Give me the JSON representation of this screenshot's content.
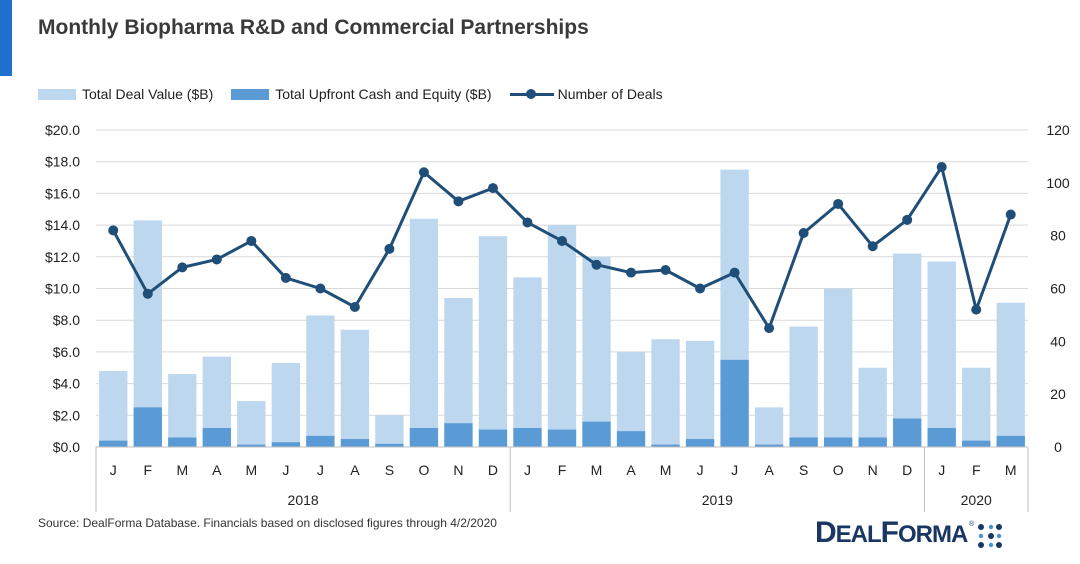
{
  "title": "Monthly Biopharma R&D and Commercial Partnerships",
  "source": "Source: DealForma Database. Financials based on disclosed figures through 4/2/2020",
  "logo": {
    "text_big1": "D",
    "text_small1": "EAL",
    "text_big2": "F",
    "text_small2": "ORMA",
    "reg": "®"
  },
  "colors": {
    "deal_value": "#bdd7ee",
    "upfront": "#5b9bd5",
    "deals_line": "#1f4e79",
    "accent": "#1f6fcf"
  },
  "chart_data": {
    "type": "bar",
    "title": "Monthly Biopharma R&D and Commercial Partnerships",
    "categories": [
      "J",
      "F",
      "M",
      "A",
      "M",
      "J",
      "J",
      "A",
      "S",
      "O",
      "N",
      "D",
      "J",
      "F",
      "M",
      "A",
      "M",
      "J",
      "J",
      "A",
      "S",
      "O",
      "N",
      "D",
      "J",
      "F",
      "M"
    ],
    "groups": [
      {
        "label": "2018",
        "start": 0,
        "count": 12
      },
      {
        "label": "2019",
        "start": 12,
        "count": 12
      },
      {
        "label": "2020",
        "start": 24,
        "count": 3
      }
    ],
    "series": [
      {
        "name": "Total Deal Value ($B)",
        "type": "bar",
        "axis": "left",
        "values": [
          4.8,
          14.3,
          4.6,
          5.7,
          2.9,
          5.3,
          8.3,
          7.4,
          2.0,
          14.4,
          9.4,
          13.3,
          10.7,
          14.0,
          12.0,
          6.0,
          6.8,
          6.7,
          17.5,
          2.5,
          7.6,
          10.0,
          5.0,
          12.2,
          11.7,
          5.0,
          9.1
        ]
      },
      {
        "name": "Total Upfront Cash and Equity ($B)",
        "type": "bar",
        "axis": "left",
        "values": [
          0.4,
          2.5,
          0.6,
          1.2,
          0.15,
          0.3,
          0.7,
          0.5,
          0.2,
          1.2,
          1.5,
          1.1,
          1.2,
          1.1,
          1.6,
          1.0,
          0.15,
          0.5,
          5.5,
          0.15,
          0.6,
          0.6,
          0.6,
          1.8,
          1.2,
          0.4,
          0.7
        ]
      },
      {
        "name": "Number of Deals",
        "type": "line",
        "axis": "right",
        "values": [
          82,
          58,
          68,
          71,
          78,
          64,
          60,
          53,
          75,
          104,
          93,
          98,
          85,
          78,
          69,
          66,
          67,
          60,
          66,
          45,
          81,
          92,
          76,
          86,
          106,
          52,
          88
        ]
      }
    ],
    "y_left": {
      "min": 0,
      "max": 20,
      "step": 2,
      "tick_labels": [
        "$0.0",
        "$2.0",
        "$4.0",
        "$6.0",
        "$8.0",
        "$10.0",
        "$12.0",
        "$14.0",
        "$16.0",
        "$18.0",
        "$20.0"
      ]
    },
    "y_right": {
      "min": 0,
      "max": 120,
      "step": 20,
      "tick_labels": [
        "0",
        "20",
        "40",
        "60",
        "80",
        "100",
        "120"
      ]
    },
    "grid": true,
    "legend_position": "top-left"
  }
}
